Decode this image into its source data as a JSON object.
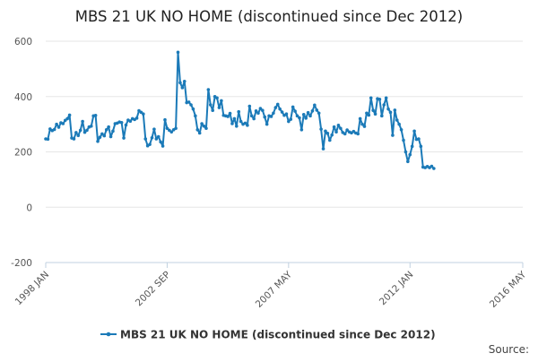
{
  "chart_data": {
    "type": "line",
    "title": "MBS 21 UK NO HOME (discontinued since Dec 2012)",
    "source_label": "Source:",
    "xlabel": "",
    "ylabel": "",
    "ylim": [
      -200,
      600
    ],
    "xlim": [
      "1998-01",
      "2016-05"
    ],
    "y_ticks": [
      -200,
      0,
      200,
      400,
      600
    ],
    "x_ticks": [
      {
        "label": "1998 JAN",
        "date": "1998-01"
      },
      {
        "label": "2002 SEP",
        "date": "2002-09"
      },
      {
        "label": "2007 MAY",
        "date": "2007-05"
      },
      {
        "label": "2012 JAN",
        "date": "2012-01"
      },
      {
        "label": "2016 MAY",
        "date": "2016-05"
      }
    ],
    "grid": {
      "horizontal": true,
      "vertical": false
    },
    "legend_position": "bottom-center",
    "series": [
      {
        "name": "MBS 21 UK NO HOME (discontinued since Dec 2012)",
        "color": "#1b7ab8",
        "points": [
          [
            "1998-01",
            247
          ],
          [
            "1998-02",
            246
          ],
          [
            "1998-03",
            283
          ],
          [
            "1998-04",
            277
          ],
          [
            "1998-05",
            281
          ],
          [
            "1998-06",
            300
          ],
          [
            "1998-07",
            289
          ],
          [
            "1998-08",
            305
          ],
          [
            "1998-09",
            302
          ],
          [
            "1998-10",
            314
          ],
          [
            "1998-11",
            320
          ],
          [
            "1998-12",
            333
          ],
          [
            "1999-01",
            250
          ],
          [
            "1999-02",
            247
          ],
          [
            "1999-03",
            270
          ],
          [
            "1999-04",
            259
          ],
          [
            "1999-05",
            278
          ],
          [
            "1999-06",
            310
          ],
          [
            "1999-07",
            271
          ],
          [
            "1999-08",
            278
          ],
          [
            "1999-09",
            290
          ],
          [
            "1999-10",
            293
          ],
          [
            "1999-11",
            330
          ],
          [
            "1999-12",
            332
          ],
          [
            "2000-01",
            238
          ],
          [
            "2000-02",
            253
          ],
          [
            "2000-03",
            265
          ],
          [
            "2000-04",
            258
          ],
          [
            "2000-05",
            280
          ],
          [
            "2000-06",
            290
          ],
          [
            "2000-07",
            255
          ],
          [
            "2000-08",
            275
          ],
          [
            "2000-09",
            302
          ],
          [
            "2000-10",
            304
          ],
          [
            "2000-11",
            308
          ],
          [
            "2000-12",
            306
          ],
          [
            "2001-01",
            250
          ],
          [
            "2001-02",
            297
          ],
          [
            "2001-03",
            315
          ],
          [
            "2001-04",
            311
          ],
          [
            "2001-05",
            320
          ],
          [
            "2001-06",
            317
          ],
          [
            "2001-07",
            322
          ],
          [
            "2001-08",
            349
          ],
          [
            "2001-09",
            343
          ],
          [
            "2001-10",
            337
          ],
          [
            "2001-11",
            247
          ],
          [
            "2001-12",
            222
          ],
          [
            "2002-01",
            227
          ],
          [
            "2002-02",
            251
          ],
          [
            "2002-03",
            282
          ],
          [
            "2002-04",
            247
          ],
          [
            "2002-05",
            255
          ],
          [
            "2002-06",
            236
          ],
          [
            "2002-07",
            221
          ],
          [
            "2002-08",
            316
          ],
          [
            "2002-09",
            285
          ],
          [
            "2002-10",
            278
          ],
          [
            "2002-11",
            272
          ],
          [
            "2002-12",
            280
          ],
          [
            "2003-01",
            285
          ],
          [
            "2003-02",
            560
          ],
          [
            "2003-03",
            450
          ],
          [
            "2003-04",
            432
          ],
          [
            "2003-05",
            455
          ],
          [
            "2003-06",
            378
          ],
          [
            "2003-07",
            380
          ],
          [
            "2003-08",
            370
          ],
          [
            "2003-09",
            355
          ],
          [
            "2003-10",
            330
          ],
          [
            "2003-11",
            280
          ],
          [
            "2003-12",
            268
          ],
          [
            "2004-01",
            302
          ],
          [
            "2004-02",
            293
          ],
          [
            "2004-03",
            285
          ],
          [
            "2004-04",
            425
          ],
          [
            "2004-05",
            370
          ],
          [
            "2004-06",
            350
          ],
          [
            "2004-07",
            400
          ],
          [
            "2004-08",
            395
          ],
          [
            "2004-09",
            360
          ],
          [
            "2004-10",
            385
          ],
          [
            "2004-11",
            332
          ],
          [
            "2004-12",
            330
          ],
          [
            "2005-01",
            328
          ],
          [
            "2005-02",
            339
          ],
          [
            "2005-03",
            302
          ],
          [
            "2005-04",
            320
          ],
          [
            "2005-05",
            293
          ],
          [
            "2005-06",
            345
          ],
          [
            "2005-07",
            310
          ],
          [
            "2005-08",
            300
          ],
          [
            "2005-09",
            304
          ],
          [
            "2005-10",
            296
          ],
          [
            "2005-11",
            365
          ],
          [
            "2005-12",
            330
          ],
          [
            "2006-01",
            320
          ],
          [
            "2006-02",
            348
          ],
          [
            "2006-03",
            340
          ],
          [
            "2006-04",
            357
          ],
          [
            "2006-05",
            350
          ],
          [
            "2006-06",
            326
          ],
          [
            "2006-07",
            300
          ],
          [
            "2006-08",
            330
          ],
          [
            "2006-09",
            328
          ],
          [
            "2006-10",
            340
          ],
          [
            "2006-11",
            360
          ],
          [
            "2006-12",
            372
          ],
          [
            "2007-01",
            355
          ],
          [
            "2007-02",
            344
          ],
          [
            "2007-03",
            332
          ],
          [
            "2007-04",
            337
          ],
          [
            "2007-05",
            310
          ],
          [
            "2007-06",
            318
          ],
          [
            "2007-07",
            362
          ],
          [
            "2007-08",
            347
          ],
          [
            "2007-09",
            330
          ],
          [
            "2007-10",
            323
          ],
          [
            "2007-11",
            280
          ],
          [
            "2007-12",
            335
          ],
          [
            "2008-01",
            322
          ],
          [
            "2008-02",
            342
          ],
          [
            "2008-03",
            330
          ],
          [
            "2008-04",
            348
          ],
          [
            "2008-05",
            369
          ],
          [
            "2008-06",
            351
          ],
          [
            "2008-07",
            340
          ],
          [
            "2008-08",
            282
          ],
          [
            "2008-09",
            211
          ],
          [
            "2008-10",
            275
          ],
          [
            "2008-11",
            267
          ],
          [
            "2008-12",
            242
          ],
          [
            "2009-01",
            261
          ],
          [
            "2009-02",
            290
          ],
          [
            "2009-03",
            272
          ],
          [
            "2009-04",
            296
          ],
          [
            "2009-05",
            285
          ],
          [
            "2009-06",
            270
          ],
          [
            "2009-07",
            265
          ],
          [
            "2009-08",
            279
          ],
          [
            "2009-09",
            272
          ],
          [
            "2009-10",
            269
          ],
          [
            "2009-11",
            274
          ],
          [
            "2009-12",
            268
          ],
          [
            "2010-01",
            265
          ],
          [
            "2010-02",
            320
          ],
          [
            "2010-03",
            300
          ],
          [
            "2010-04",
            292
          ],
          [
            "2010-05",
            340
          ],
          [
            "2010-06",
            333
          ],
          [
            "2010-07",
            395
          ],
          [
            "2010-08",
            350
          ],
          [
            "2010-09",
            337
          ],
          [
            "2010-10",
            392
          ],
          [
            "2010-11",
            390
          ],
          [
            "2010-12",
            330
          ],
          [
            "2011-01",
            370
          ],
          [
            "2011-02",
            395
          ],
          [
            "2011-03",
            355
          ],
          [
            "2011-04",
            343
          ],
          [
            "2011-05",
            260
          ],
          [
            "2011-06",
            351
          ],
          [
            "2011-07",
            315
          ],
          [
            "2011-08",
            300
          ],
          [
            "2011-09",
            280
          ],
          [
            "2011-10",
            242
          ],
          [
            "2011-11",
            200
          ],
          [
            "2011-12",
            165
          ],
          [
            "2012-01",
            190
          ],
          [
            "2012-02",
            220
          ],
          [
            "2012-03",
            275
          ],
          [
            "2012-04",
            245
          ],
          [
            "2012-05",
            247
          ],
          [
            "2012-06",
            220
          ],
          [
            "2012-07",
            145
          ],
          [
            "2012-08",
            143
          ],
          [
            "2012-09",
            147
          ],
          [
            "2012-10",
            143
          ],
          [
            "2012-11",
            148
          ],
          [
            "2012-12",
            140
          ]
        ]
      }
    ]
  }
}
